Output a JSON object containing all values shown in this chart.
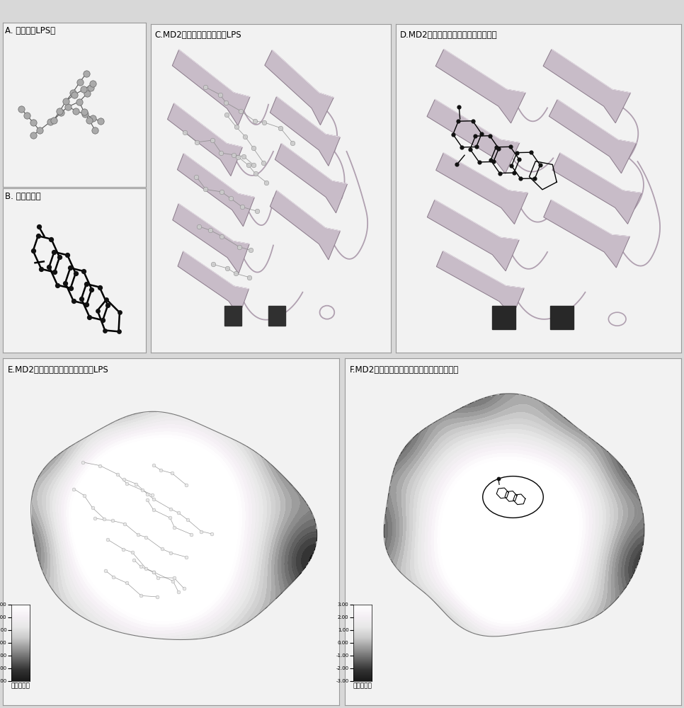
{
  "panel_labels": {
    "A": "A. 脂多糖（LPS）",
    "B": "B. 雷公藤红素",
    "C": "C.MD2蛋白｛带状图｝结合LPS",
    "D": "D.MD2蛋白｛带状图｝结合雷公藤红素",
    "E": "E.MD2蛋白｛表面疏水性图｝结合LPS",
    "F": "F.MD2蛋白｛表面疏水性图｝结合雷公藤红素"
  },
  "scale_labels": [
    "3.00",
    "2.00",
    "1.00",
    "0.00",
    "-1.00",
    "-2.00",
    "-3.00"
  ],
  "scale_title": "疏水性标度",
  "bg_color": "#d8d8d8",
  "panel_bg": "#f2f2f2",
  "border_color": "#999999",
  "label_fontsize": 8.5,
  "scale_fontsize": 6
}
